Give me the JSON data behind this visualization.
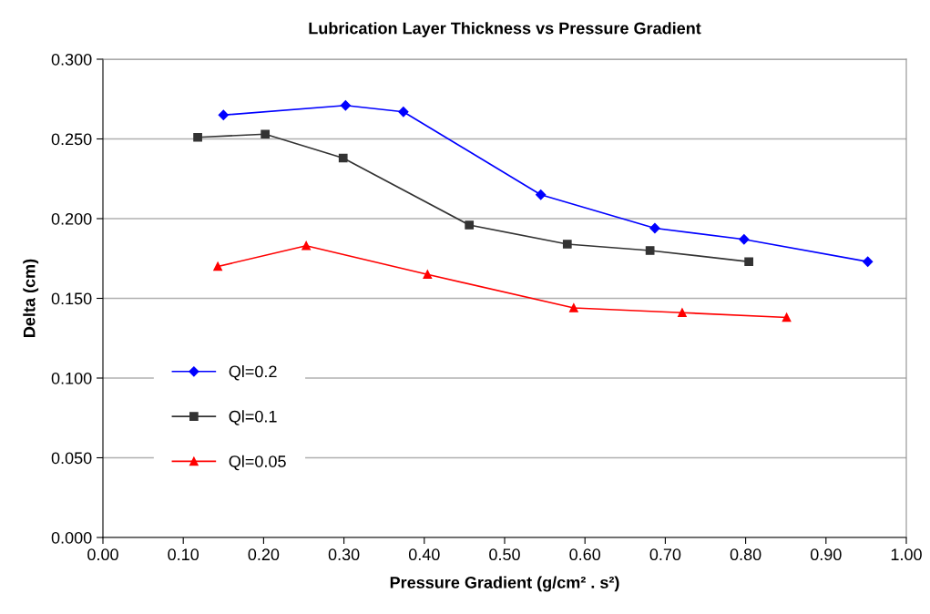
{
  "chart_data": {
    "type": "line",
    "title": "Lubrication Layer Thickness vs Pressure Gradient",
    "xlabel": "Pressure Gradient (g/cm² . s²)",
    "ylabel": "Delta (cm)",
    "xlim": [
      0,
      1
    ],
    "xticks": [
      {
        "value": 0,
        "label": "0.00"
      },
      {
        "value": 0.1,
        "label": "0.10"
      },
      {
        "value": 0.2,
        "label": "0.20"
      },
      {
        "value": 0.3,
        "label": "0.30"
      },
      {
        "value": 0.4,
        "label": "0.40"
      },
      {
        "value": 0.5,
        "label": "0.50"
      },
      {
        "value": 0.6,
        "label": "0.60"
      },
      {
        "value": 0.7,
        "label": "0.70"
      },
      {
        "value": 0.8,
        "label": "0.80"
      },
      {
        "value": 0.9,
        "label": "0.90"
      },
      {
        "value": 1,
        "label": "1.00"
      }
    ],
    "ylim": [
      0,
      0.3
    ],
    "yticks": [
      {
        "value": 0,
        "label": "0.000"
      },
      {
        "value": 0.05,
        "label": "0.050"
      },
      {
        "value": 0.1,
        "label": "0.100"
      },
      {
        "value": 0.15,
        "label": "0.150"
      },
      {
        "value": 0.2,
        "label": "0.200"
      },
      {
        "value": 0.25,
        "label": "0.250"
      },
      {
        "value": 0.3,
        "label": "0.300"
      }
    ],
    "grid": "y",
    "legend": "left",
    "series": [
      {
        "name": "Ql=0.2",
        "color": "#0000ff",
        "marker": "diamond",
        "x": [
          0.15,
          0.302,
          0.374,
          0.545,
          0.687,
          0.798,
          0.952
        ],
        "values": [
          0.265,
          0.271,
          0.267,
          0.215,
          0.194,
          0.187,
          0.173
        ]
      },
      {
        "name": "Ql=0.1",
        "color": "#333333",
        "marker": "square",
        "x": [
          0.118,
          0.202,
          0.299,
          0.456,
          0.578,
          0.681,
          0.804
        ],
        "values": [
          0.251,
          0.253,
          0.238,
          0.196,
          0.184,
          0.18,
          0.173
        ]
      },
      {
        "name": "Ql=0.05",
        "color": "#ff0000",
        "marker": "triangle",
        "x": [
          0.143,
          0.253,
          0.404,
          0.586,
          0.721,
          0.851
        ],
        "values": [
          0.17,
          0.183,
          0.165,
          0.144,
          0.141,
          0.138
        ]
      }
    ]
  }
}
